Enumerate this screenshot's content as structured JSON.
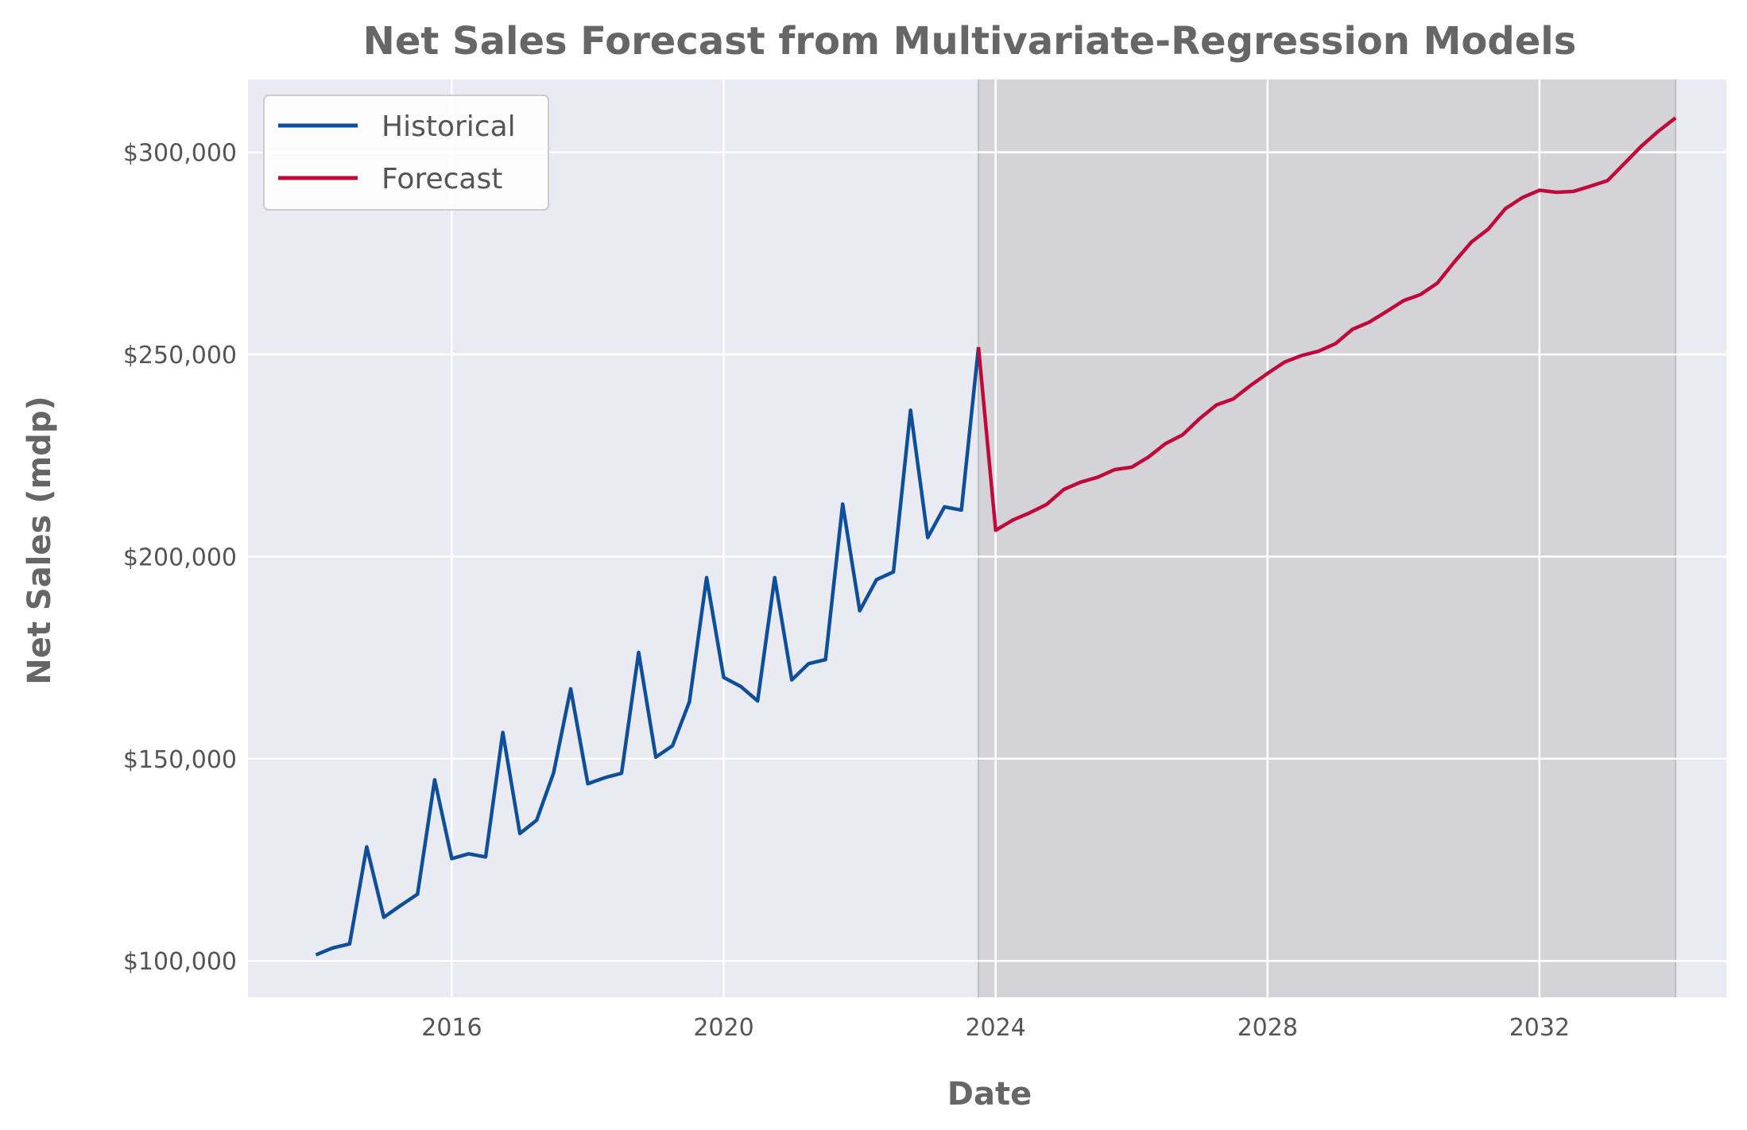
{
  "chart_data": {
    "type": "line",
    "title": "Net Sales Forecast from Multivariate-Regression Models",
    "xlabel": "Date",
    "ylabel": "Net Sales (mdp)",
    "x_axis_type": "date",
    "xlim": [
      "2013-01-01",
      "2034-10-01"
    ],
    "ylim": [
      91000,
      318000
    ],
    "x_ticks": [
      "2016",
      "2020",
      "2024",
      "2028",
      "2032"
    ],
    "y_ticks": [
      "$100,000",
      "$150,000",
      "$200,000",
      "$250,000",
      "$300,000"
    ],
    "y_tick_values": [
      100000,
      150000,
      200000,
      250000,
      300000
    ],
    "grid": true,
    "background": "#eaeaf2",
    "forecast_region": [
      "2023-10-01",
      "2034-01-01"
    ],
    "forecast_region_color": "#d4d4d8",
    "legend": {
      "placement": "top-left",
      "entries": [
        "Historical",
        "Forecast"
      ]
    },
    "series": [
      {
        "name": "Historical",
        "color": "#0d4f9a",
        "points": [
          [
            "2014-01-01",
            101500
          ],
          [
            "2014-04-01",
            103200
          ],
          [
            "2014-07-01",
            104200
          ],
          [
            "2014-10-01",
            128200
          ],
          [
            "2015-01-01",
            110800
          ],
          [
            "2015-04-01",
            113700
          ],
          [
            "2015-07-01",
            116500
          ],
          [
            "2015-10-01",
            144800
          ],
          [
            "2016-01-01",
            125300
          ],
          [
            "2016-04-01",
            126500
          ],
          [
            "2016-07-01",
            125700
          ],
          [
            "2016-10-01",
            156500
          ],
          [
            "2017-01-01",
            131500
          ],
          [
            "2017-04-01",
            134800
          ],
          [
            "2017-07-01",
            146500
          ],
          [
            "2017-10-01",
            167300
          ],
          [
            "2018-01-01",
            143800
          ],
          [
            "2018-04-01",
            145300
          ],
          [
            "2018-07-01",
            146400
          ],
          [
            "2018-10-01",
            176300
          ],
          [
            "2019-01-01",
            150400
          ],
          [
            "2019-04-01",
            153200
          ],
          [
            "2019-07-01",
            164100
          ],
          [
            "2019-10-01",
            194800
          ],
          [
            "2020-01-01",
            170100
          ],
          [
            "2020-04-01",
            167900
          ],
          [
            "2020-07-01",
            164300
          ],
          [
            "2020-10-01",
            194800
          ],
          [
            "2021-01-01",
            169500
          ],
          [
            "2021-04-01",
            173500
          ],
          [
            "2021-07-01",
            174500
          ],
          [
            "2021-10-01",
            213000
          ],
          [
            "2022-01-01",
            186600
          ],
          [
            "2022-04-01",
            194300
          ],
          [
            "2022-07-01",
            196200
          ],
          [
            "2022-10-01",
            236200
          ],
          [
            "2023-01-01",
            204700
          ],
          [
            "2023-04-01",
            212300
          ],
          [
            "2023-07-01",
            211500
          ],
          [
            "2023-10-01",
            251800
          ]
        ]
      },
      {
        "name": "Forecast",
        "color": "#c0083a",
        "points": [
          [
            "2023-10-01",
            251800
          ],
          [
            "2024-01-01",
            206500
          ],
          [
            "2024-04-01",
            209000
          ],
          [
            "2024-07-01",
            210800
          ],
          [
            "2024-10-01",
            212900
          ],
          [
            "2025-01-01",
            216600
          ],
          [
            "2025-04-01",
            218400
          ],
          [
            "2025-07-01",
            219600
          ],
          [
            "2025-10-01",
            221500
          ],
          [
            "2026-01-01",
            222100
          ],
          [
            "2026-04-01",
            224600
          ],
          [
            "2026-07-01",
            227900
          ],
          [
            "2026-10-01",
            230100
          ],
          [
            "2027-01-01",
            234100
          ],
          [
            "2027-04-01",
            237500
          ],
          [
            "2027-07-01",
            239000
          ],
          [
            "2027-10-01",
            242300
          ],
          [
            "2028-01-01",
            245300
          ],
          [
            "2028-04-01",
            248100
          ],
          [
            "2028-07-01",
            249700
          ],
          [
            "2028-10-01",
            250800
          ],
          [
            "2029-01-01",
            252700
          ],
          [
            "2029-04-01",
            256200
          ],
          [
            "2029-07-01",
            258000
          ],
          [
            "2029-10-01",
            260600
          ],
          [
            "2030-01-01",
            263300
          ],
          [
            "2030-04-01",
            264800
          ],
          [
            "2030-07-01",
            267600
          ],
          [
            "2030-10-01",
            272900
          ],
          [
            "2031-01-01",
            277800
          ],
          [
            "2031-04-01",
            281000
          ],
          [
            "2031-07-01",
            286000
          ],
          [
            "2031-10-01",
            288800
          ],
          [
            "2032-01-01",
            290600
          ],
          [
            "2032-04-01",
            290100
          ],
          [
            "2032-07-01",
            290300
          ],
          [
            "2032-10-01",
            291600
          ],
          [
            "2033-01-01",
            293000
          ],
          [
            "2033-04-01",
            297200
          ],
          [
            "2033-07-01",
            301500
          ],
          [
            "2033-10-01",
            305200
          ],
          [
            "2034-01-01",
            308500
          ]
        ]
      }
    ]
  }
}
